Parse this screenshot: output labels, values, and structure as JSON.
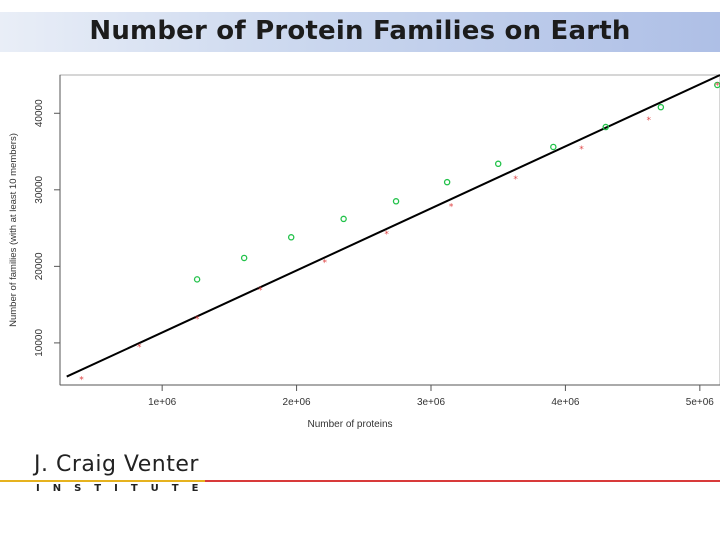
{
  "slide": {
    "title": "Number of Protein Families on Earth"
  },
  "logo": {
    "name": "J. Craig Venter",
    "sub": "INSTITUTE"
  },
  "colors": {
    "fit_line": "#000000",
    "series_green": "#22c24a",
    "series_red": "#e04848"
  },
  "chart_data": {
    "type": "scatter",
    "xlabel": "Number of proteins",
    "ylabel": "Number of families (with at least 10 members)",
    "xlim": [
      240000,
      5150000
    ],
    "ylim": [
      4500,
      45000
    ],
    "x_ticks": [
      {
        "value": 1000000,
        "label": "1e+06"
      },
      {
        "value": 2000000,
        "label": "2e+06"
      },
      {
        "value": 3000000,
        "label": "3e+06"
      },
      {
        "value": 4000000,
        "label": "4e+06"
      },
      {
        "value": 5000000,
        "label": "5e+06"
      }
    ],
    "y_ticks": [
      {
        "value": 10000,
        "label": "10000"
      },
      {
        "value": 20000,
        "label": "20000"
      },
      {
        "value": 30000,
        "label": "30000"
      },
      {
        "value": 40000,
        "label": "40000"
      }
    ],
    "series": [
      {
        "marker": "circle",
        "color": "#22c24a",
        "points": [
          [
            1260000,
            18300
          ],
          [
            1610000,
            21100
          ],
          [
            1960000,
            23800
          ],
          [
            2350000,
            26200
          ],
          [
            2740000,
            28500
          ],
          [
            3120000,
            31000
          ],
          [
            3500000,
            33400
          ],
          [
            3910000,
            35600
          ],
          [
            4300000,
            38200
          ],
          [
            4710000,
            40800
          ],
          [
            5130000,
            43700
          ]
        ]
      },
      {
        "marker": "star",
        "color": "#e04848",
        "points": [
          [
            400000,
            5300
          ],
          [
            830000,
            9500
          ],
          [
            1260000,
            13200
          ],
          [
            1730000,
            17000
          ],
          [
            2210000,
            20600
          ],
          [
            2670000,
            24300
          ],
          [
            3150000,
            27900
          ],
          [
            3630000,
            31500
          ],
          [
            4120000,
            35400
          ],
          [
            4620000,
            39200
          ],
          [
            5130000,
            43700
          ]
        ]
      }
    ],
    "fit_line": {
      "x": [
        290000,
        5150000
      ],
      "y": [
        5600,
        45000
      ]
    },
    "grid": false,
    "legend": "none"
  }
}
